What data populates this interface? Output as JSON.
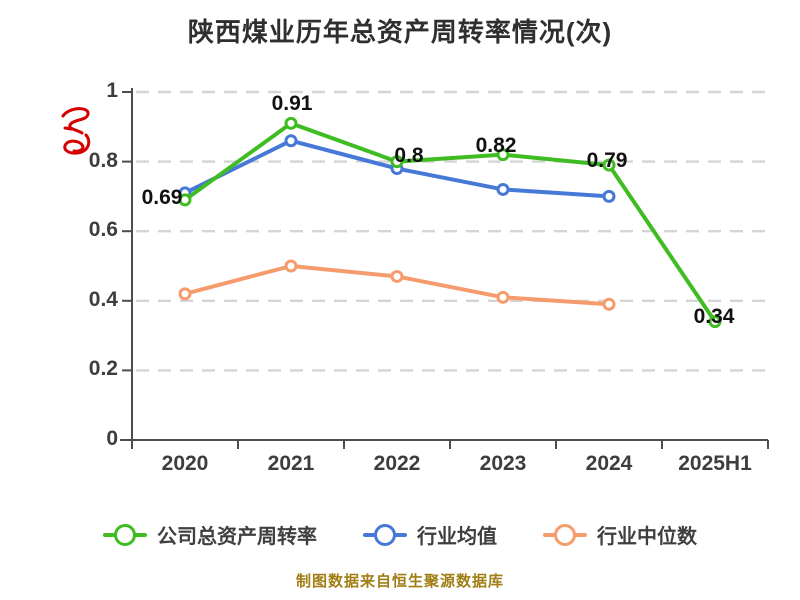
{
  "title": "陕西煤业历年总资产周转率情况(次)",
  "footer": "制图数据来自恒生聚源数据库",
  "colors": {
    "company_line": "#3fbc22",
    "industry_mean_line": "#4678d7",
    "industry_median_line": "#f59b6c",
    "grid": "#d5d5d5",
    "axis": "#4d4d4d",
    "title_text": "#2f2f2f",
    "footer_text": "#a07e14",
    "watermark_red": "#d60000"
  },
  "chart_data": {
    "type": "line",
    "title": "陕西煤业历年总资产周转率情况(次)",
    "categories": [
      "2020",
      "2021",
      "2022",
      "2023",
      "2024",
      "2025H1"
    ],
    "series": [
      {
        "name": "公司总资产周转率",
        "color": "#3fbc22",
        "values": [
          0.69,
          0.91,
          0.8,
          0.82,
          0.79,
          0.34
        ],
        "labels": [
          "0.69",
          "0.91",
          "0.8",
          "0.82",
          "0.79",
          "0.34"
        ]
      },
      {
        "name": "行业均值",
        "color": "#4678d7",
        "values": [
          0.71,
          0.86,
          0.78,
          0.72,
          0.7
        ]
      },
      {
        "name": "行业中位数",
        "color": "#f59b6c",
        "values": [
          0.42,
          0.5,
          0.47,
          0.41,
          0.39
        ]
      }
    ],
    "xlabel": "",
    "ylabel": "",
    "ylim": [
      0,
      1
    ],
    "y_ticks": [
      "0",
      "0.2",
      "0.4",
      "0.6",
      "0.8",
      "1"
    ],
    "grid": "horizontal-dashed",
    "legend_position": "bottom"
  }
}
